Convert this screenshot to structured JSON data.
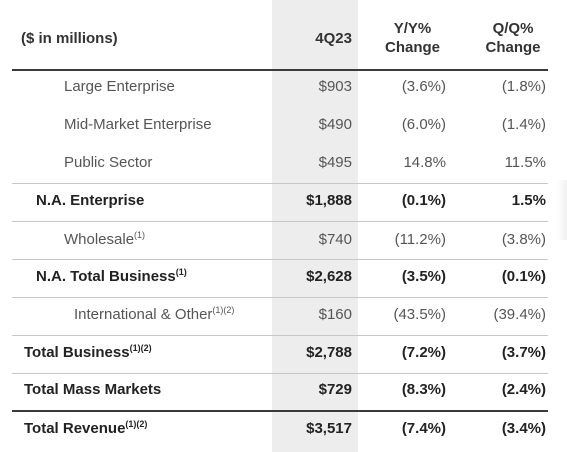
{
  "header": {
    "unit_label": "($ in millions)",
    "period": "4Q23",
    "yoy_line1": "Y/Y%",
    "yoy_line2": "Change",
    "qoq_line1": "Q/Q%",
    "qoq_line2": "Change"
  },
  "rows": [
    {
      "label": "Large Enterprise",
      "sup": "",
      "value": "$903",
      "yoy": "(3.6%)",
      "qoq": "(1.8%)"
    },
    {
      "label": "Mid-Market Enterprise",
      "sup": "",
      "value": "$490",
      "yoy": "(6.0%)",
      "qoq": "(1.4%)"
    },
    {
      "label": "Public Sector",
      "sup": "",
      "value": "$495",
      "yoy": "14.8%",
      "qoq": "11.5%"
    },
    {
      "label": "N.A. Enterprise",
      "sup": "",
      "value": "$1,888",
      "yoy": "(0.1%)",
      "qoq": "1.5%"
    },
    {
      "label": "Wholesale",
      "sup": "(1)",
      "value": "$740",
      "yoy": "(11.2%)",
      "qoq": "(3.8%)"
    },
    {
      "label": "N.A. Total Business",
      "sup": "(1)",
      "value": "$2,628",
      "yoy": "(3.5%)",
      "qoq": "(0.1%)"
    },
    {
      "label": "International & Other",
      "sup": "(1)(2)",
      "value": "$160",
      "yoy": "(43.5%)",
      "qoq": "(39.4%)"
    },
    {
      "label": "Total Business",
      "sup": "(1)(2)",
      "value": "$2,788",
      "yoy": "(7.2%)",
      "qoq": "(3.7%)"
    },
    {
      "label": "Total Mass Markets",
      "sup": "",
      "value": "$729",
      "yoy": "(8.3%)",
      "qoq": "(2.4%)"
    },
    {
      "label": "Total Revenue",
      "sup": "(1)(2)",
      "value": "$3,517",
      "yoy": "(7.4%)",
      "qoq": "(3.4%)"
    }
  ]
}
